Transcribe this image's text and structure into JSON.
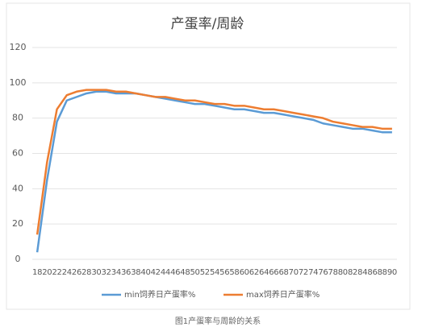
{
  "chart_data": {
    "type": "line",
    "title": "产蛋率/周龄",
    "categories": [
      "18",
      "20",
      "22",
      "24",
      "26",
      "28",
      "30",
      "32",
      "34",
      "36",
      "38",
      "40",
      "42",
      "44",
      "46",
      "48",
      "50",
      "52",
      "54",
      "56",
      "58",
      "60",
      "62",
      "64",
      "66",
      "68",
      "70",
      "72",
      "74",
      "76",
      "78",
      "80",
      "82",
      "84",
      "86",
      "88",
      "90"
    ],
    "series": [
      {
        "name": "min饲养日产蛋率%",
        "color": "#5b9bd5",
        "values": [
          4,
          45,
          78,
          90,
          92,
          94,
          95,
          95,
          94,
          94,
          94,
          93,
          92,
          91,
          90,
          89,
          88,
          88,
          87,
          86,
          85,
          85,
          84,
          83,
          83,
          82,
          81,
          80,
          79,
          77,
          76,
          75,
          74,
          74,
          73,
          72,
          72
        ]
      },
      {
        "name": "max饲养日产蛋率%",
        "color": "#ed7d31",
        "values": [
          14,
          55,
          85,
          93,
          95,
          96,
          96,
          96,
          95,
          95,
          94,
          93,
          92,
          92,
          91,
          90,
          90,
          89,
          88,
          88,
          87,
          87,
          86,
          85,
          85,
          84,
          83,
          82,
          81,
          80,
          78,
          77,
          76,
          75,
          75,
          74,
          74
        ]
      }
    ],
    "ylim": [
      0,
      120
    ],
    "yticks": [
      0,
      20,
      40,
      60,
      80,
      100,
      120
    ],
    "grid": true,
    "legend": "bottom"
  },
  "caption": "图1产蛋率与周龄的关系"
}
